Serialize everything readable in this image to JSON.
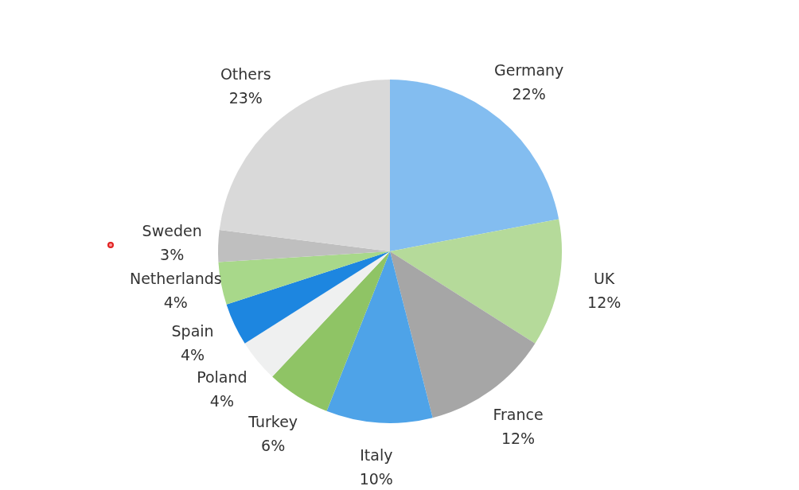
{
  "chart_data": {
    "type": "pie",
    "categories": [
      "Germany",
      "UK",
      "France",
      "Italy",
      "Turkey",
      "Poland",
      "Spain",
      "Netherlands",
      "Sweden",
      "Others"
    ],
    "values": [
      22,
      12,
      12,
      10,
      6,
      4,
      4,
      4,
      3,
      23
    ],
    "value_labels": [
      "22%",
      "12%",
      "12%",
      "10%",
      "6%",
      "4%",
      "4%",
      "4%",
      "3%",
      "23%"
    ],
    "colors": [
      "#83bdf0",
      "#b5da9a",
      "#a6a6a6",
      "#4ea3e8",
      "#8fc465",
      "#eff0f0",
      "#1d86e0",
      "#a8d88a",
      "#bfbfbf",
      "#d9d9d9"
    ],
    "legend": false
  }
}
